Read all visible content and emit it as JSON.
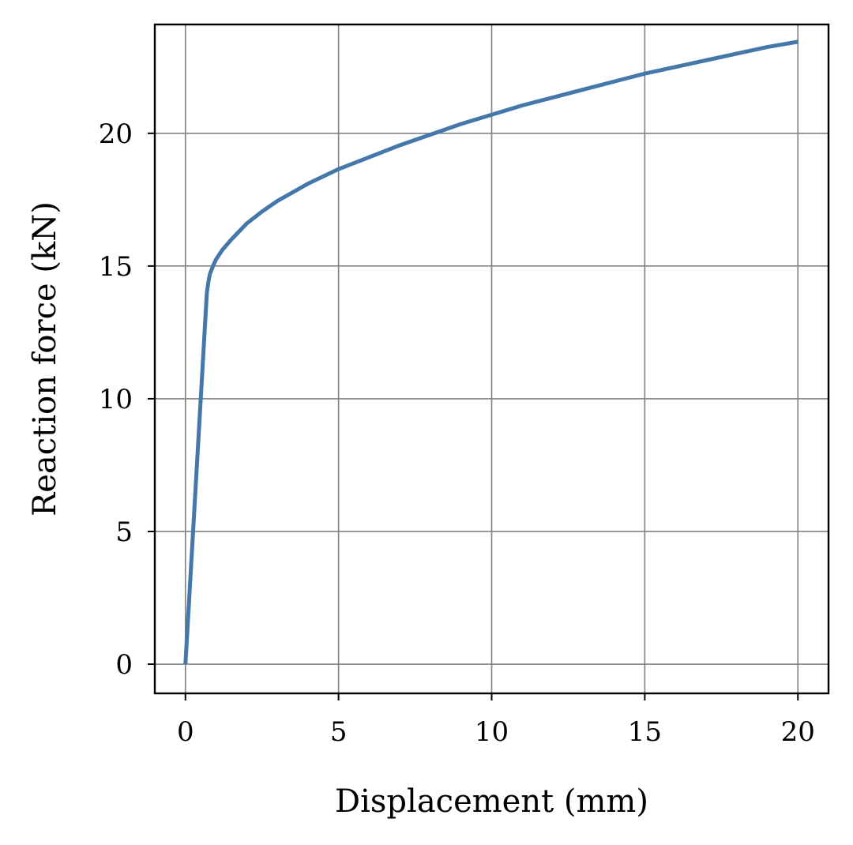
{
  "chart_data": {
    "type": "line",
    "title": "",
    "xlabel": "Displacement (mm)",
    "ylabel": "Reaction force (kN)",
    "xlim": [
      -1,
      21
    ],
    "ylim": [
      -1.1,
      24.1
    ],
    "grid": true,
    "xticks": [
      0,
      5,
      10,
      15,
      20
    ],
    "yticks": [
      0,
      5,
      10,
      15,
      20
    ],
    "xtick_labels": [
      "0",
      "5",
      "10",
      "15",
      "20"
    ],
    "ytick_labels": [
      "0",
      "5",
      "10",
      "15",
      "20"
    ],
    "colors": {
      "line": "#4477aa",
      "grid": "#808080",
      "axes": "#000000"
    },
    "series": [
      {
        "x": [
          0,
          0.05,
          0.1,
          0.2,
          0.3,
          0.4,
          0.5,
          0.6,
          0.7,
          0.75,
          0.8,
          0.9,
          1.0,
          1.2,
          1.5,
          2.0,
          2.5,
          3.0,
          4.0,
          5.0,
          6.0,
          7.0,
          8.0,
          9.0,
          10.0,
          11.0,
          12.0,
          13.0,
          14.0,
          15.0,
          16.0,
          17.0,
          18.0,
          19.0,
          20.0
        ],
        "y": [
          0,
          1.0,
          2.0,
          4.0,
          6.0,
          8.0,
          10.0,
          12.0,
          14.0,
          14.4,
          14.7,
          15.0,
          15.25,
          15.6,
          16.0,
          16.6,
          17.05,
          17.45,
          18.1,
          18.65,
          19.1,
          19.55,
          19.95,
          20.35,
          20.7,
          21.05,
          21.35,
          21.65,
          21.95,
          22.25,
          22.5,
          22.75,
          23.0,
          23.25,
          23.45
        ]
      }
    ]
  }
}
